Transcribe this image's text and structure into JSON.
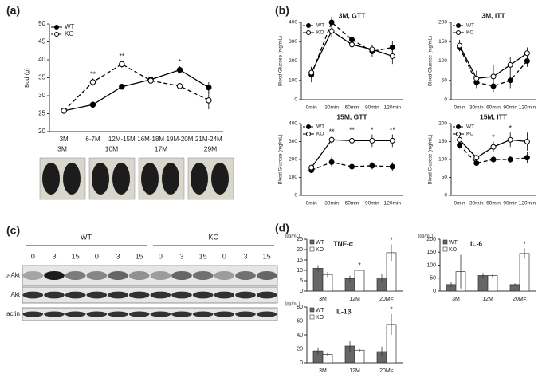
{
  "panels": [
    "(a)",
    "(b)",
    "(c)",
    "(d)"
  ],
  "chart_data": [
    {
      "type": "line",
      "categories": [
        "3M",
        "6-7M",
        "12M-15M",
        "16M-18M",
        "19M-20M",
        "21M-24M"
      ],
      "y_label": "Bod (g)",
      "ylim": [
        20,
        50
      ],
      "yticks": [
        20,
        25,
        30,
        35,
        40,
        45,
        50
      ],
      "series": [
        {
          "name": "WT",
          "color": "#000000",
          "line_style": "solid",
          "marker": "filled",
          "values": [
            25.8,
            27.5,
            32.5,
            34.5,
            37.2,
            32.3
          ],
          "errors": [
            0.5,
            0.8,
            0.6,
            0.5,
            1.0,
            1.5
          ]
        },
        {
          "name": "KO",
          "color": "#000000",
          "line_style": "dashed",
          "marker": "open",
          "values": [
            25.8,
            33.8,
            38.8,
            34.2,
            32.7,
            28.7
          ],
          "errors": [
            0.5,
            1.0,
            1.0,
            0.5,
            0.6,
            2.5
          ]
        }
      ],
      "annotations": [
        {
          "text": "**",
          "category": "6-7M"
        },
        {
          "text": "**",
          "category": "12M-15M"
        },
        {
          "text": "*",
          "category": "19M-20M"
        }
      ]
    },
    {
      "type": "line",
      "title": "3M, GTT",
      "categories": [
        "0min",
        "30min",
        "60min",
        "90min",
        "120min"
      ],
      "y_label": "Blood Glucose (mg/mL)",
      "ylim": [
        0,
        400
      ],
      "yticks": [
        0,
        100,
        200,
        300,
        400
      ],
      "series": [
        {
          "name": "WT",
          "color": "#000000",
          "line_style": "dashed",
          "marker": "filled",
          "values": [
            130,
            400,
            310,
            250,
            270
          ],
          "errors": [
            40,
            30,
            30,
            30,
            35
          ]
        },
        {
          "name": "KO",
          "color": "#000000",
          "line_style": "solid",
          "marker": "open",
          "values": [
            140,
            355,
            285,
            260,
            225
          ],
          "errors": [
            30,
            30,
            30,
            25,
            40
          ]
        }
      ],
      "annotations": []
    },
    {
      "type": "line",
      "title": "3M, ITT",
      "categories": [
        "0min",
        "30min",
        "60min",
        "90min",
        "120min"
      ],
      "y_label": "Blood Glucose (mg/mL)",
      "ylim": [
        0,
        200
      ],
      "yticks": [
        0,
        50,
        100,
        150,
        200
      ],
      "series": [
        {
          "name": "WT",
          "color": "#000000",
          "line_style": "dashed",
          "marker": "filled",
          "values": [
            135,
            45,
            35,
            50,
            100
          ],
          "errors": [
            10,
            15,
            15,
            20,
            15
          ]
        },
        {
          "name": "KO",
          "color": "#000000",
          "line_style": "solid",
          "marker": "open",
          "values": [
            140,
            55,
            60,
            90,
            120
          ],
          "errors": [
            15,
            20,
            30,
            20,
            15
          ]
        }
      ],
      "annotations": []
    },
    {
      "type": "line",
      "title": "15M, GTT",
      "categories": [
        "0min",
        "30min",
        "60min",
        "90min",
        "120min"
      ],
      "y_label": "Blood Glucose (mg/mL)",
      "ylim": [
        0,
        400
      ],
      "yticks": [
        0,
        100,
        200,
        300,
        400
      ],
      "series": [
        {
          "name": "WT",
          "color": "#000000",
          "line_style": "dashed",
          "marker": "filled",
          "values": [
            140,
            185,
            160,
            165,
            160
          ],
          "errors": [
            15,
            30,
            30,
            20,
            25
          ]
        },
        {
          "name": "KO",
          "color": "#000000",
          "line_style": "solid",
          "marker": "open",
          "values": [
            155,
            310,
            305,
            305,
            305
          ],
          "errors": [
            15,
            20,
            35,
            35,
            35
          ]
        }
      ],
      "annotations": [
        {
          "text": "**",
          "category": "30min"
        },
        {
          "text": "**",
          "category": "60min"
        },
        {
          "text": "*",
          "category": "90min"
        },
        {
          "text": "**",
          "category": "120min"
        }
      ]
    },
    {
      "type": "line",
      "title": "15M, ITT",
      "categories": [
        "0min",
        "30min",
        "60min",
        "90min",
        "120min"
      ],
      "y_label": "Blood Glucose (mg/mL)",
      "ylim": [
        0,
        200
      ],
      "yticks": [
        0,
        50,
        100,
        150,
        200
      ],
      "series": [
        {
          "name": "WT",
          "color": "#000000",
          "line_style": "dashed",
          "marker": "filled",
          "values": [
            140,
            90,
            100,
            100,
            105
          ],
          "errors": [
            10,
            5,
            10,
            10,
            15
          ]
        },
        {
          "name": "KO",
          "color": "#000000",
          "line_style": "solid",
          "marker": "open",
          "values": [
            155,
            105,
            135,
            155,
            150
          ],
          "errors": [
            10,
            5,
            15,
            20,
            25
          ]
        }
      ],
      "annotations": [
        {
          "text": "*",
          "category": "60min"
        },
        {
          "text": "*",
          "category": "90min"
        }
      ]
    },
    {
      "type": "bar",
      "title": "TNF-α",
      "categories": [
        "3M",
        "12M",
        "20M<"
      ],
      "y_label": "(pg/mL)",
      "ylim": [
        0,
        25
      ],
      "yticks": [
        0,
        5,
        10,
        15,
        20,
        25
      ],
      "series": [
        {
          "name": "WT",
          "color": "#666666",
          "values": [
            11,
            6,
            6.3
          ],
          "errors": [
            1.5,
            1.5,
            2
          ]
        },
        {
          "name": "KO",
          "color": "#ffffff",
          "values": [
            8,
            10,
            18.5
          ],
          "errors": [
            1.2,
            0.3,
            4
          ]
        }
      ],
      "annotations": [
        {
          "text": "*",
          "category": "12M"
        },
        {
          "text": "*",
          "category": "20M<"
        }
      ]
    },
    {
      "type": "bar",
      "title": "IL-6",
      "categories": [
        "3M",
        "12M",
        "20M<"
      ],
      "y_label": "(pg/mL)",
      "ylim": [
        0,
        200
      ],
      "yticks": [
        0,
        50,
        100,
        150,
        200
      ],
      "series": [
        {
          "name": "WT",
          "color": "#666666",
          "values": [
            25,
            60,
            25
          ],
          "errors": [
            10,
            10,
            5
          ]
        },
        {
          "name": "KO",
          "color": "#ffffff",
          "values": [
            75,
            60,
            145
          ],
          "errors": [
            65,
            8,
            20
          ]
        }
      ],
      "annotations": [
        {
          "text": "*",
          "category": "20M<"
        }
      ]
    },
    {
      "type": "bar",
      "title": "IL-1β",
      "categories": [
        "3M",
        "12M",
        "20M<"
      ],
      "y_label": "(pg/mL)",
      "ylim": [
        0,
        80
      ],
      "yticks": [
        0,
        20,
        40,
        60,
        80
      ],
      "series": [
        {
          "name": "WT",
          "color": "#666666",
          "values": [
            17,
            24,
            16
          ],
          "errors": [
            5,
            8,
            7
          ]
        },
        {
          "name": "KO",
          "color": "#ffffff",
          "values": [
            12,
            18,
            55
          ],
          "errors": [
            2,
            3,
            15
          ]
        }
      ],
      "annotations": [
        {
          "text": "*",
          "category": "20M<"
        }
      ]
    }
  ],
  "photos": {
    "labels": [
      "3M",
      "10M",
      "17M",
      "29M"
    ]
  },
  "blot": {
    "groups": [
      "WT",
      "KO"
    ],
    "lanes": [
      "0",
      "3",
      "15",
      "0",
      "3",
      "15",
      "0",
      "3",
      "15",
      "0",
      "3",
      "15"
    ],
    "rows": [
      "p-Akt",
      "Akt",
      "actin"
    ]
  }
}
